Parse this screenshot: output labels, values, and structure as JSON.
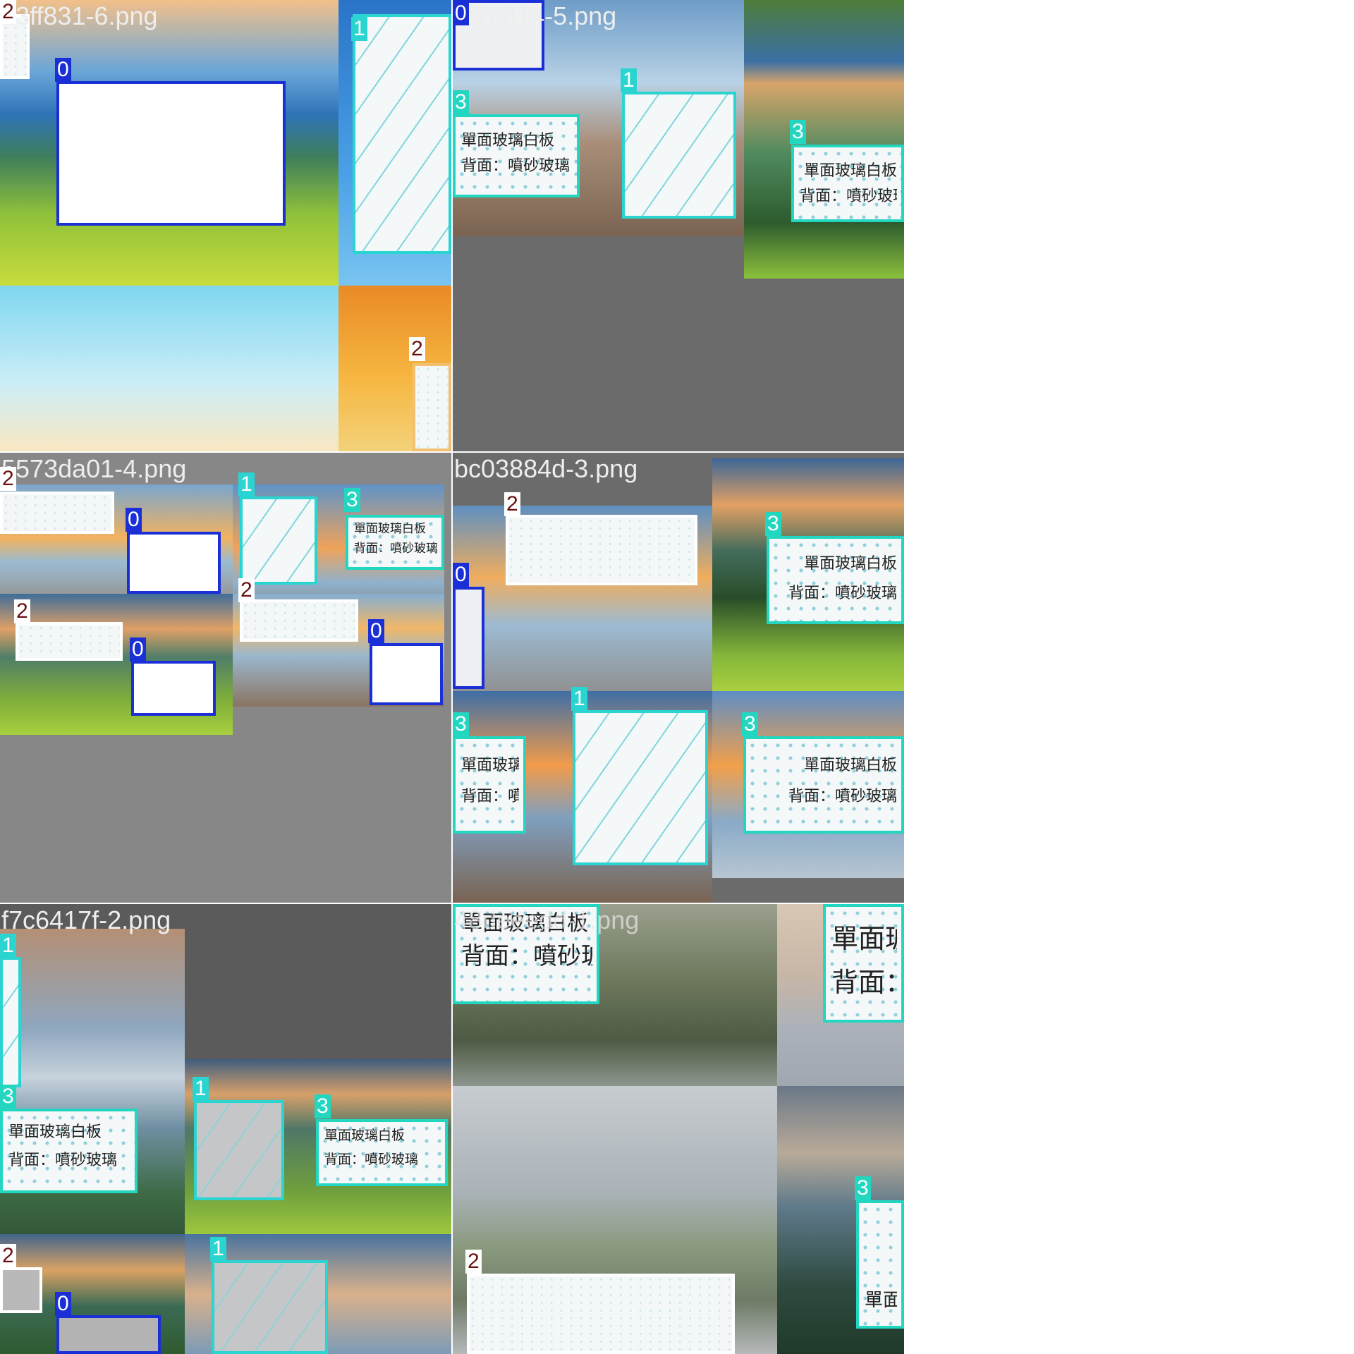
{
  "mosaic": {
    "tiles": [
      {
        "filename": "23ff831-6.png"
      },
      {
        "filename": "fe7c814-5.png"
      },
      {
        "filename": "5573da01-4.png"
      },
      {
        "filename": "bc03884d-3.png"
      },
      {
        "filename": "f7c6417f-2.png"
      },
      {
        "filename": "48deeedd-1.png"
      }
    ]
  },
  "whiteboard_text": {
    "line1": "單面玻璃白板",
    "line2": "背面：噴砂玻璃"
  },
  "class_ids": [
    "0",
    "1",
    "2",
    "3"
  ],
  "colors": {
    "class0": "#1a2fd6",
    "class1": "#2ad4d0",
    "class2": "#ffffff",
    "class3": "#22d6c0",
    "tile_bg": "#6b6b6b"
  }
}
